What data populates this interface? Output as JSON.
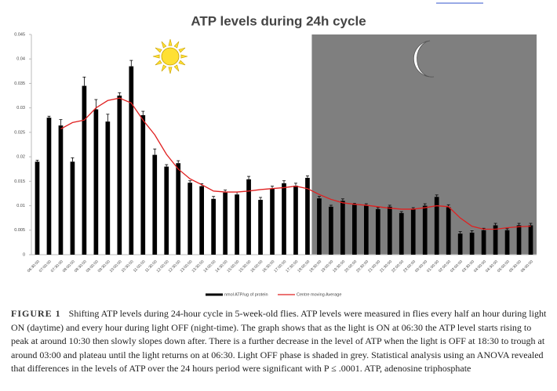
{
  "chart_data": {
    "type": "bar",
    "title": "ATP levels during 24h cycle",
    "categories": [
      "06:30:00",
      "07:00:00",
      "07:30:00",
      "08:00:00",
      "08:30:00",
      "09:00:00",
      "09:30:00",
      "10:00:00",
      "10:30:00",
      "11:00:00",
      "11:30:00",
      "12:00:00",
      "12:30:00",
      "13:00:00",
      "13:30:00",
      "14:00:00",
      "14:30:00",
      "15:00:00",
      "15:30:00",
      "16:00:00",
      "16:30:00",
      "17:00:00",
      "17:30:00",
      "18:00:00",
      "18:30:00",
      "19:00:00",
      "19:30:00",
      "20:00:00",
      "20:30:00",
      "21:00:00",
      "21:30:00",
      "22:00:00",
      "23:00:00",
      "00:00:00",
      "01:00:00",
      "02:00:00",
      "03:00:00",
      "03:30:00",
      "04:00:00",
      "04:30:00",
      "05:00:00",
      "05:30:00",
      "06:00:00"
    ],
    "series": [
      {
        "name": "nmol ATP/ug of protein",
        "color": "#000000",
        "values": [
          0.019,
          0.028,
          0.0264,
          0.019,
          0.0345,
          0.0297,
          0.0272,
          0.0325,
          0.0385,
          0.0285,
          0.0204,
          0.018,
          0.0187,
          0.0147,
          0.014,
          0.0114,
          0.0127,
          0.0123,
          0.0154,
          0.0112,
          0.0135,
          0.0146,
          0.0141,
          0.0157,
          0.0115,
          0.0098,
          0.011,
          0.0102,
          0.01,
          0.0093,
          0.0098,
          0.0085,
          0.0093,
          0.01,
          0.0118,
          0.0097,
          0.0043,
          0.0045,
          0.005,
          0.006,
          0.005,
          0.006,
          0.006
        ],
        "errors": [
          0.0003,
          0.0003,
          0.0012,
          0.0008,
          0.0018,
          0.002,
          0.0015,
          0.0006,
          0.0012,
          0.0008,
          0.0012,
          0.0004,
          0.0005,
          0.0004,
          0.0005,
          0.0005,
          0.0005,
          0.0005,
          0.0006,
          0.0005,
          0.0005,
          0.0005,
          0.0005,
          0.0004,
          0.0004,
          0.0003,
          0.0004,
          0.0003,
          0.0004,
          0.0003,
          0.0003,
          0.0003,
          0.0003,
          0.0004,
          0.0004,
          0.0005,
          0.0004,
          0.0004,
          0.0004,
          0.0004,
          0.0003,
          0.0004,
          0.0004
        ]
      },
      {
        "name": "Centre moving Average",
        "color": "#e02020",
        "type": "line",
        "values": [
          null,
          null,
          0.0257,
          0.027,
          0.0275,
          0.03,
          0.0315,
          0.032,
          0.031,
          0.0275,
          0.0245,
          0.0205,
          0.0175,
          0.0155,
          0.0143,
          0.013,
          0.0128,
          0.0128,
          0.013,
          0.0133,
          0.0135,
          0.0137,
          0.014,
          0.0135,
          0.0123,
          0.0113,
          0.0106,
          0.0103,
          0.0101,
          0.0098,
          0.0095,
          0.0093,
          0.0093,
          0.0096,
          0.01,
          0.0098,
          0.0075,
          0.0058,
          0.0052,
          0.0052,
          0.0055,
          0.0057,
          0.0058
        ]
      }
    ],
    "ylim": [
      0,
      0.045
    ],
    "yticks": [
      0,
      0.005,
      0.01,
      0.015,
      0.02,
      0.025,
      0.03,
      0.035,
      0.04,
      0.045
    ],
    "grid": false,
    "legend": "bottom"
  },
  "figure": {
    "label": "FIGURE 1",
    "caption": "Shifting ATP levels during 24-hour cycle in 5-week-old flies. ATP levels were measured in flies every half an hour during light ON (daytime) and every hour during light OFF (night-time). The graph shows that as the light is ON at 06:30 the ATP level starts rising to peak at around 10:30 then slowly slopes down after. There is a further decrease in the level of ATP when the light is OFF at 18:30 to trough at around 03:00 and plateau until the light returns on at 06:30. Light OFF phase is shaded in grey. Statistical analysis using an ANOVA revealed that differences in the levels of ATP over the 24 hours period were significant with P ≤ .0001. ATP, adenosine triphosphate"
  }
}
